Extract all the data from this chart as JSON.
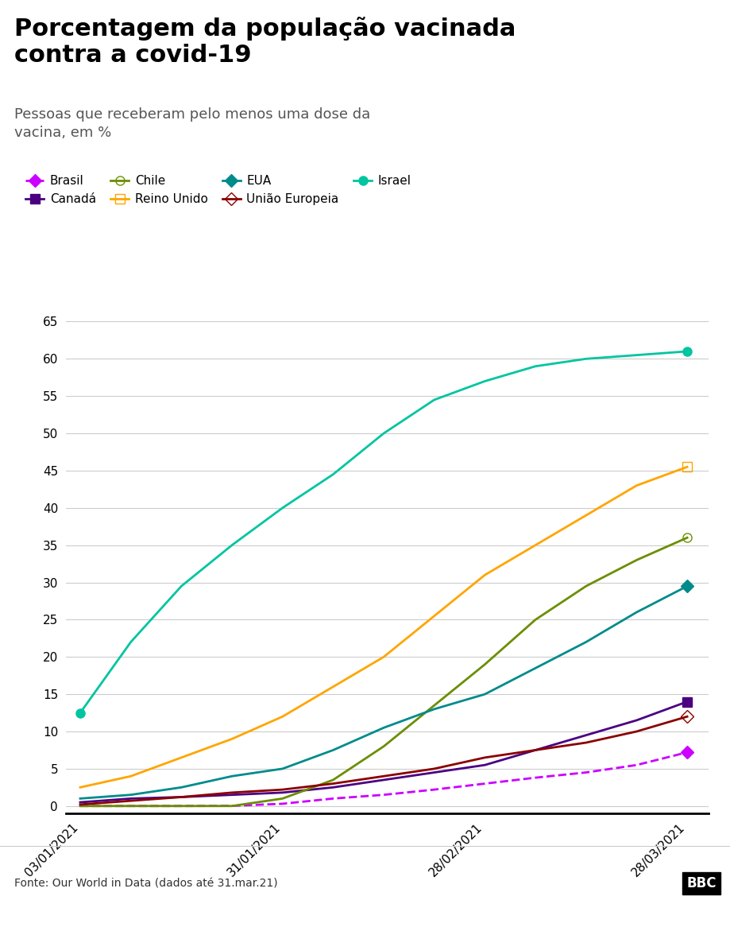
{
  "title": "Porcentagem da população vacinada\ncontra a covid-19",
  "subtitle": "Pessoas que receberam pelo menos uma dose da\nvacina, em %",
  "source": "Fonte: Our World in Data (dados até 31.mar.21)",
  "background_color": "#ffffff",
  "title_fontsize": 22,
  "subtitle_fontsize": 13,
  "ylim": [
    -1,
    68
  ],
  "yticks": [
    0,
    5,
    10,
    15,
    20,
    25,
    30,
    35,
    40,
    45,
    50,
    55,
    60,
    65
  ],
  "series": {
    "Brasil": {
      "color": "#cc00ff",
      "marker": "D",
      "linestyle": "--",
      "linewidth": 2.0,
      "markersize": 8,
      "data": {
        "2021-01-03": 0.0,
        "2021-01-10": 0.0,
        "2021-01-17": 0.0,
        "2021-01-24": 0.02,
        "2021-01-31": 0.3,
        "2021-02-07": 1.0,
        "2021-02-14": 1.5,
        "2021-02-21": 2.2,
        "2021-02-28": 3.0,
        "2021-03-07": 3.8,
        "2021-03-14": 4.5,
        "2021-03-21": 5.5,
        "2021-03-28": 7.2
      }
    },
    "Canadá": {
      "color": "#4b0082",
      "marker": "s",
      "linestyle": "-",
      "linewidth": 2.0,
      "markersize": 8,
      "data": {
        "2021-01-03": 0.5,
        "2021-01-10": 1.0,
        "2021-01-17": 1.2,
        "2021-01-24": 1.5,
        "2021-01-31": 1.8,
        "2021-02-07": 2.5,
        "2021-02-14": 3.5,
        "2021-02-21": 4.5,
        "2021-02-28": 5.5,
        "2021-03-07": 7.5,
        "2021-03-14": 9.5,
        "2021-03-21": 11.5,
        "2021-03-28": 14.0
      }
    },
    "Chile": {
      "color": "#6b8e00",
      "marker": "o",
      "linestyle": "-",
      "linewidth": 2.0,
      "markersize": 8,
      "markerfacecolor": "none",
      "data": {
        "2021-01-03": 0.0,
        "2021-01-10": 0.0,
        "2021-01-17": 0.0,
        "2021-01-24": 0.0,
        "2021-01-31": 1.0,
        "2021-02-07": 3.5,
        "2021-02-14": 8.0,
        "2021-02-21": 13.5,
        "2021-02-28": 19.0,
        "2021-03-07": 25.0,
        "2021-03-14": 29.5,
        "2021-03-21": 33.0,
        "2021-03-28": 36.0
      }
    },
    "Reino Unido": {
      "color": "#ffa500",
      "marker": "s",
      "linestyle": "-",
      "linewidth": 2.0,
      "markersize": 8,
      "markerfacecolor": "none",
      "data": {
        "2021-01-03": 2.5,
        "2021-01-10": 4.0,
        "2021-01-17": 6.5,
        "2021-01-24": 9.0,
        "2021-01-31": 12.0,
        "2021-02-07": 16.0,
        "2021-02-14": 20.0,
        "2021-02-21": 25.5,
        "2021-02-28": 31.0,
        "2021-03-07": 35.0,
        "2021-03-14": 39.0,
        "2021-03-21": 43.0,
        "2021-03-28": 45.5
      }
    },
    "EUA": {
      "color": "#008b8b",
      "marker": "D",
      "linestyle": "-",
      "linewidth": 2.0,
      "markersize": 8,
      "data": {
        "2021-01-03": 1.0,
        "2021-01-10": 1.5,
        "2021-01-17": 2.5,
        "2021-01-24": 4.0,
        "2021-01-31": 5.0,
        "2021-02-07": 7.5,
        "2021-02-14": 10.5,
        "2021-02-21": 13.0,
        "2021-02-28": 15.0,
        "2021-03-07": 18.5,
        "2021-03-14": 22.0,
        "2021-03-21": 26.0,
        "2021-03-28": 29.5
      }
    },
    "União Europeia": {
      "color": "#8b0000",
      "marker": "D",
      "linestyle": "-",
      "linewidth": 2.0,
      "markersize": 8,
      "markerfacecolor": "none",
      "data": {
        "2021-01-03": 0.2,
        "2021-01-10": 0.7,
        "2021-01-17": 1.2,
        "2021-01-24": 1.8,
        "2021-01-31": 2.2,
        "2021-02-07": 3.0,
        "2021-02-14": 4.0,
        "2021-02-21": 5.0,
        "2021-02-28": 6.5,
        "2021-03-07": 7.5,
        "2021-03-14": 8.5,
        "2021-03-21": 10.0,
        "2021-03-28": 12.0
      }
    },
    "Israel": {
      "color": "#00c5a0",
      "marker": "o",
      "linestyle": "-",
      "linewidth": 2.0,
      "markersize": 8,
      "data": {
        "2021-01-03": 12.5,
        "2021-01-10": 22.0,
        "2021-01-17": 29.5,
        "2021-01-24": 35.0,
        "2021-01-31": 40.0,
        "2021-02-07": 44.5,
        "2021-02-14": 50.0,
        "2021-02-21": 54.5,
        "2021-02-28": 57.0,
        "2021-03-07": 59.0,
        "2021-03-14": 60.0,
        "2021-03-21": 60.5,
        "2021-03-28": 61.0
      }
    }
  },
  "xtick_dates": [
    "2021-01-03",
    "2021-01-31",
    "2021-02-28",
    "2021-03-28"
  ],
  "xtick_labels": [
    "03/01/2021",
    "31/01/2021",
    "28/02/2021",
    "28/03/2021"
  ]
}
